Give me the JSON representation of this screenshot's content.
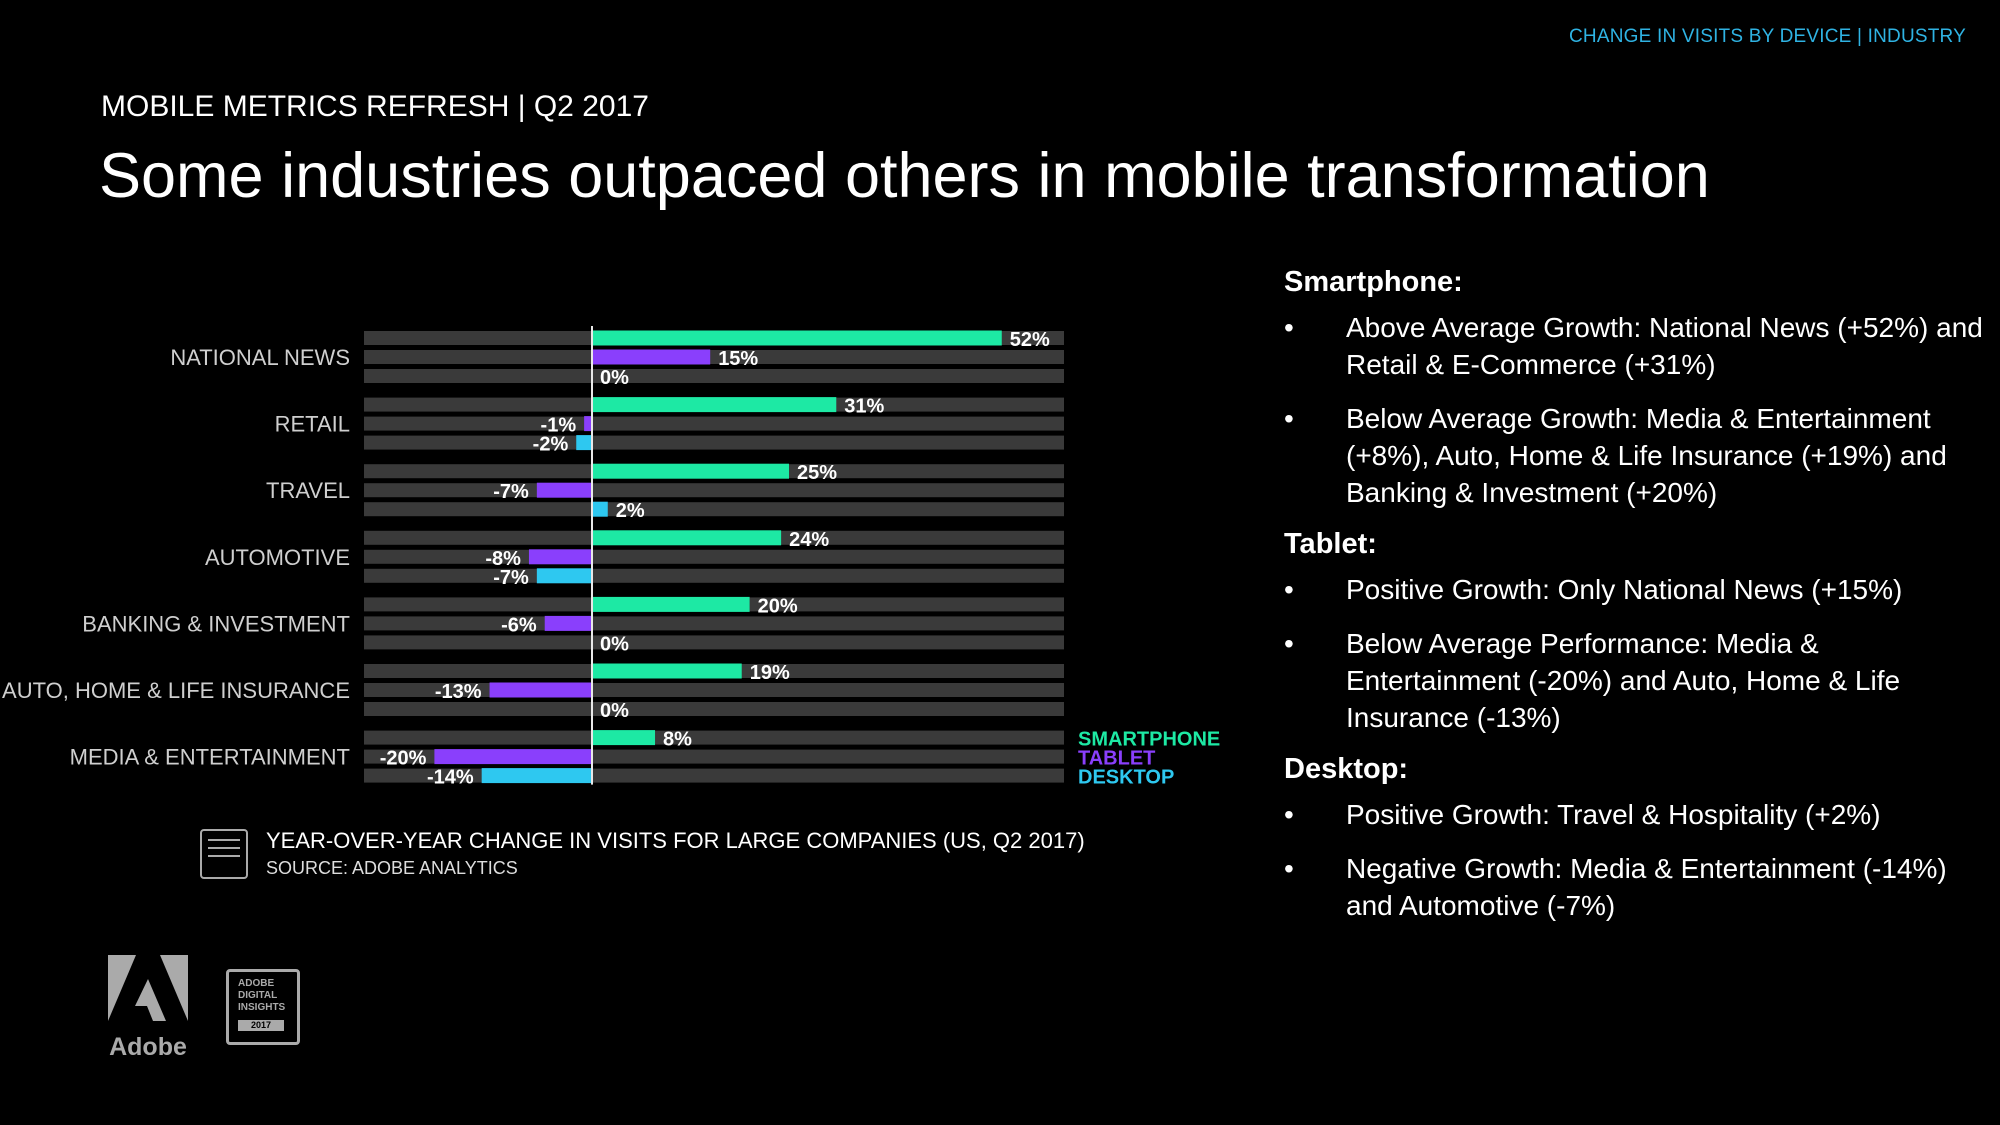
{
  "header": {
    "crumb": "CHANGE IN VISITS BY DEVICE | INDUSTRY",
    "eyebrow": "MOBILE METRICS REFRESH | Q2 2017",
    "title": "Some industries outpaced others in mobile transformation"
  },
  "chart_data": {
    "type": "bar",
    "orientation": "horizontal",
    "categories": [
      "NATIONAL NEWS",
      "RETAIL",
      "TRAVEL",
      "AUTOMOTIVE",
      "BANKING & INVESTMENT",
      "AUTO, HOME & LIFE INSURANCE",
      "MEDIA & ENTERTAINMENT"
    ],
    "series": [
      {
        "name": "SMARTPHONE",
        "color": "#1de9a4",
        "values": [
          52,
          31,
          25,
          24,
          20,
          19,
          8
        ],
        "labels": [
          "52%",
          "31%",
          "25%",
          "24%",
          "20%",
          "19%",
          "8%"
        ]
      },
      {
        "name": "TABLET",
        "color": "#8a3ffc",
        "values": [
          15,
          -1,
          -7,
          -8,
          -6,
          -13,
          -20
        ],
        "labels": [
          "15%",
          "-1%",
          "-7%",
          "-8%",
          "-6%",
          "-13%",
          "-20%"
        ]
      },
      {
        "name": "DESKTOP",
        "color": "#2ec8f0",
        "values": [
          0,
          -2,
          2,
          -7,
          0,
          0,
          -14
        ],
        "labels": [
          "0%",
          "-2%",
          "2%",
          "-7%",
          "0%",
          "0%",
          "-14%"
        ]
      }
    ],
    "xlim": [
      -29,
      60
    ],
    "legend": "bottom-right",
    "caption": "YEAR-OVER-YEAR CHANGE IN VISITS FOR LARGE COMPANIES (US, Q2 2017)",
    "source": "SOURCE: ADOBE ANALYTICS"
  },
  "branding": {
    "adobe": "Adobe",
    "badge_lines": [
      "ADOBE",
      "DIGITAL",
      "INSIGHTS"
    ],
    "badge_year": "2017"
  },
  "sidebar": {
    "smartphone": {
      "heading": "Smartphone:",
      "bullets": [
        "Above Average Growth: National News (+52%) and Retail & E-Commerce (+31%)",
        "Below Average Growth: Media & Entertainment (+8%), Auto, Home & Life Insurance (+19%) and Banking & Investment (+20%)"
      ]
    },
    "tablet": {
      "heading": "Tablet:",
      "bullets": [
        "Positive Growth: Only National News (+15%)",
        "Below Average Performance: Media & Entertainment (-20%) and Auto, Home & Life Insurance (-13%)"
      ]
    },
    "desktop": {
      "heading": "Desktop:",
      "bullets": [
        "Positive Growth: Travel & Hospitality (+2%)",
        "Negative Growth: Media & Entertainment (-14%) and Automotive (-7%)"
      ]
    }
  }
}
